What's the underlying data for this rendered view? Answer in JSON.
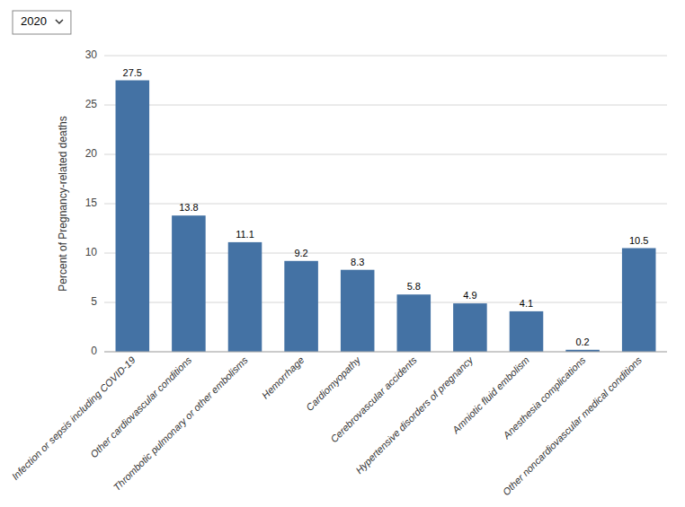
{
  "chart_data": {
    "type": "bar",
    "annotations": [
      "2020"
    ],
    "categories": [
      "Infection or sepsis including COVID-19",
      "Other cardiovascular conditions",
      "Thrombotic pulmonary or other embolisms",
      "Hemorrhage",
      "Cardiomyopathy",
      "Cerebrovascular accidents",
      "Hypertensive disorders of pregnancy",
      "Amniotic fluid embolism",
      "Anesthesia complications",
      "Other noncardiovascular medical conditions"
    ],
    "values": [
      27.5,
      13.8,
      11.1,
      9.2,
      8.3,
      5.8,
      4.9,
      4.1,
      0.2,
      10.5
    ],
    "color": "#4472a4",
    "ylabel": "Percent of Pregnancy-related deaths",
    "ylim": [
      0,
      30
    ],
    "yticks": [
      0,
      5,
      10,
      15,
      20,
      25,
      30
    ],
    "grid": true,
    "data_labels": true
  }
}
